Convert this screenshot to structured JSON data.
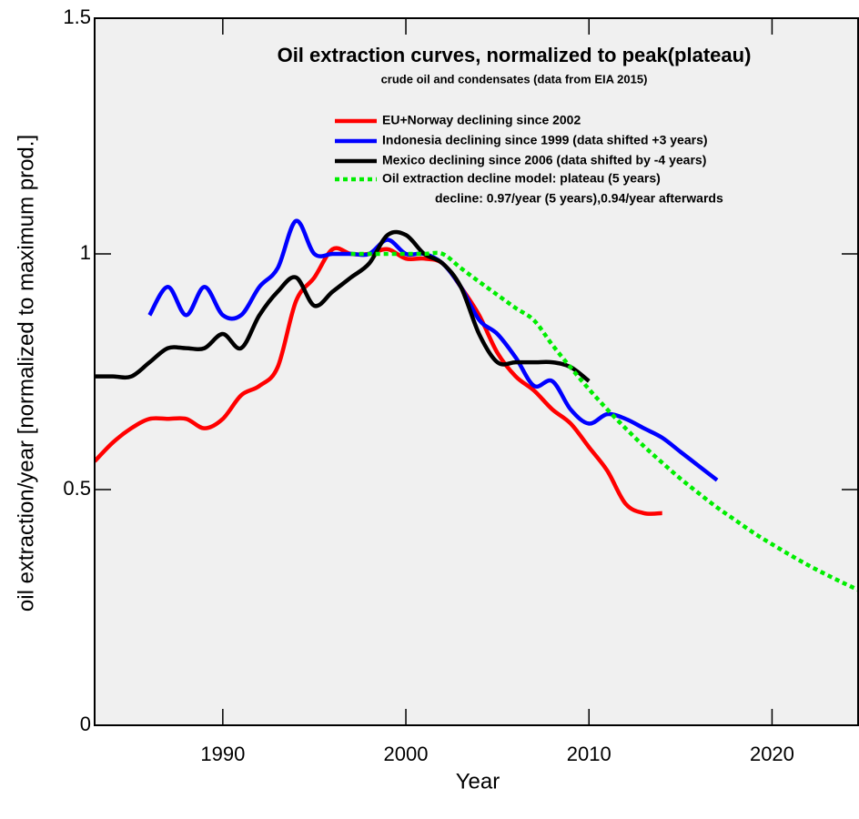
{
  "chart_data": {
    "type": "line",
    "title": "Oil extraction curves, normalized to peak(plateau)",
    "subtitle": "crude oil and condensates (data from EIA 2015)",
    "xlabel": "Year",
    "ylabel": "oil extraction/year  [normalized to maximum prod.]",
    "annotation": "decline: 0.97/year (5 years),0.94/year afterwards",
    "xlim": [
      1983,
      2024.7
    ],
    "ylim": [
      0,
      1.5
    ],
    "xticks": [
      1990,
      2000,
      2010,
      2020
    ],
    "yticks": [
      0,
      0.5,
      1,
      1.5
    ],
    "series": [
      {
        "name": "EU+Norway declining since 2002",
        "color": "#ff0000",
        "x": [
          1983,
          1984,
          1985,
          1986,
          1987,
          1988,
          1989,
          1990,
          1991,
          1992,
          1993,
          1994,
          1995,
          1996,
          1997,
          1998,
          1999,
          2000,
          2001,
          2002,
          2003,
          2004,
          2005,
          2006,
          2007,
          2008,
          2009,
          2010,
          2011,
          2012,
          2013,
          2014
        ],
        "values": [
          0.56,
          0.6,
          0.63,
          0.65,
          0.65,
          0.65,
          0.63,
          0.65,
          0.7,
          0.72,
          0.76,
          0.9,
          0.95,
          1.01,
          1.0,
          1.0,
          1.01,
          0.99,
          0.99,
          0.98,
          0.93,
          0.87,
          0.79,
          0.74,
          0.71,
          0.67,
          0.64,
          0.59,
          0.54,
          0.47,
          0.45,
          0.45
        ]
      },
      {
        "name": "Indonesia declining since 1999 (data shifted +3 years)",
        "color": "#0000ff",
        "x": [
          1986,
          1987,
          1988,
          1989,
          1990,
          1991,
          1992,
          1993,
          1994,
          1995,
          1996,
          1997,
          1998,
          1999,
          2000,
          2001,
          2002,
          2003,
          2004,
          2005,
          2006,
          2007,
          2008,
          2009,
          2010,
          2011,
          2012,
          2013,
          2014,
          2015,
          2016,
          2017
        ],
        "values": [
          0.87,
          0.93,
          0.87,
          0.93,
          0.87,
          0.87,
          0.93,
          0.97,
          1.07,
          1.0,
          1.0,
          1.0,
          1.0,
          1.03,
          1.0,
          1.0,
          0.98,
          0.93,
          0.86,
          0.83,
          0.78,
          0.72,
          0.73,
          0.67,
          0.64,
          0.66,
          0.65,
          0.63,
          0.61,
          0.58,
          0.55,
          0.52
        ]
      },
      {
        "name": "Mexico declining since 2006 (data shifted by -4 years)",
        "color": "#000000",
        "x": [
          1983,
          1984,
          1985,
          1986,
          1987,
          1988,
          1989,
          1990,
          1991,
          1992,
          1993,
          1994,
          1995,
          1996,
          1997,
          1998,
          1999,
          2000,
          2001,
          2002,
          2003,
          2004,
          2005,
          2006,
          2007,
          2008,
          2009,
          2010
        ],
        "values": [
          0.74,
          0.74,
          0.74,
          0.77,
          0.8,
          0.8,
          0.8,
          0.83,
          0.8,
          0.87,
          0.92,
          0.95,
          0.89,
          0.92,
          0.95,
          0.98,
          1.04,
          1.04,
          1.0,
          0.98,
          0.93,
          0.83,
          0.77,
          0.77,
          0.77,
          0.77,
          0.76,
          0.73
        ]
      },
      {
        "name": "Oil extraction decline model: plateau (5 years)",
        "color": "#00ee00",
        "dashed": true,
        "x": [
          1997,
          1998,
          1999,
          2000,
          2001,
          2002,
          2003,
          2004,
          2005,
          2006,
          2007,
          2008,
          2009,
          2010,
          2011,
          2012,
          2013,
          2014,
          2015,
          2016,
          2017,
          2018,
          2019,
          2020,
          2021,
          2022,
          2023,
          2024,
          2025
        ],
        "values": [
          1.0,
          1.0,
          1.0,
          1.0,
          1.0,
          1.0,
          0.97,
          0.941,
          0.913,
          0.885,
          0.859,
          0.807,
          0.759,
          0.713,
          0.67,
          0.63,
          0.592,
          0.557,
          0.523,
          0.492,
          0.462,
          0.435,
          0.408,
          0.384,
          0.361,
          0.339,
          0.319,
          0.3,
          0.282
        ]
      }
    ]
  }
}
